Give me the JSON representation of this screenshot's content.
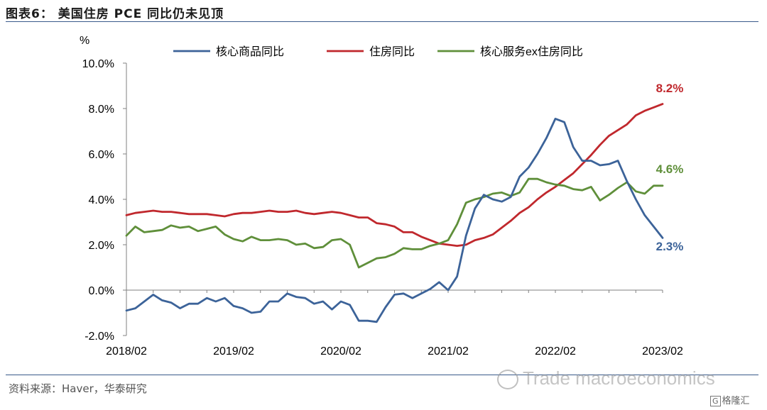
{
  "header": {
    "title": "图表6：  美国住房 PCE 同比仍未见顶"
  },
  "footer": {
    "source": "资料来源：Haver，华泰研究",
    "watermark": "Trade macroeconomics",
    "brand": "格隆汇",
    "brand_mark": "G"
  },
  "colors": {
    "core_goods": "#3c6399",
    "housing": "#c0282d",
    "core_services_ex_housing": "#5f8f3a",
    "axis": "#808080"
  },
  "chart_data": {
    "type": "line",
    "ylabel": "%",
    "ylim": [
      -2.0,
      10.0
    ],
    "yticks": [
      "-2.0%",
      "0.0%",
      "2.0%",
      "4.0%",
      "6.0%",
      "8.0%",
      "10.0%"
    ],
    "ytick_values": [
      -2,
      0,
      2,
      4,
      6,
      8,
      10
    ],
    "xticks": [
      "2018/02",
      "2019/02",
      "2020/02",
      "2021/02",
      "2022/02",
      "2023/02"
    ],
    "legend_position": "top",
    "grid": false,
    "x": [
      "2018/02",
      "2018/03",
      "2018/04",
      "2018/05",
      "2018/06",
      "2018/07",
      "2018/08",
      "2018/09",
      "2018/10",
      "2018/11",
      "2018/12",
      "2019/01",
      "2019/02",
      "2019/03",
      "2019/04",
      "2019/05",
      "2019/06",
      "2019/07",
      "2019/08",
      "2019/09",
      "2019/10",
      "2019/11",
      "2019/12",
      "2020/01",
      "2020/02",
      "2020/03",
      "2020/04",
      "2020/05",
      "2020/06",
      "2020/07",
      "2020/08",
      "2020/09",
      "2020/10",
      "2020/11",
      "2020/12",
      "2021/01",
      "2021/02",
      "2021/03",
      "2021/04",
      "2021/05",
      "2021/06",
      "2021/07",
      "2021/08",
      "2021/09",
      "2021/10",
      "2021/11",
      "2021/12",
      "2022/01",
      "2022/02",
      "2022/03",
      "2022/04",
      "2022/05",
      "2022/06",
      "2022/07",
      "2022/08",
      "2022/09",
      "2022/10",
      "2022/11",
      "2022/12",
      "2023/01",
      "2023/02"
    ],
    "series": [
      {
        "name": "核心商品同比",
        "color_key": "core_goods",
        "end_label": "2.3%",
        "values": [
          -0.9,
          -0.8,
          -0.5,
          -0.2,
          -0.45,
          -0.55,
          -0.8,
          -0.6,
          -0.6,
          -0.35,
          -0.5,
          -0.35,
          -0.7,
          -0.8,
          -1.0,
          -0.95,
          -0.5,
          -0.5,
          -0.15,
          -0.3,
          -0.35,
          -0.6,
          -0.5,
          -0.85,
          -0.5,
          -0.65,
          -1.35,
          -1.35,
          -1.4,
          -0.75,
          -0.2,
          -0.15,
          -0.35,
          -0.15,
          0.05,
          0.35,
          0.0,
          0.6,
          2.4,
          3.6,
          4.2,
          4.0,
          3.9,
          4.1,
          5.0,
          5.4,
          6.0,
          6.7,
          7.55,
          7.4,
          6.3,
          5.7,
          5.7,
          5.5,
          5.55,
          5.7,
          4.8,
          4.0,
          3.3,
          2.8,
          2.3
        ]
      },
      {
        "name": "住房同比",
        "color_key": "housing",
        "end_label": "8.2%",
        "values": [
          3.3,
          3.4,
          3.45,
          3.5,
          3.45,
          3.45,
          3.4,
          3.35,
          3.35,
          3.35,
          3.3,
          3.25,
          3.35,
          3.4,
          3.4,
          3.45,
          3.5,
          3.45,
          3.45,
          3.5,
          3.4,
          3.35,
          3.4,
          3.45,
          3.4,
          3.3,
          3.2,
          3.2,
          2.95,
          2.9,
          2.8,
          2.55,
          2.55,
          2.35,
          2.2,
          2.05,
          2.0,
          1.95,
          2.0,
          2.2,
          2.3,
          2.45,
          2.75,
          3.05,
          3.4,
          3.65,
          4.0,
          4.3,
          4.55,
          4.85,
          5.15,
          5.55,
          5.95,
          6.4,
          6.8,
          7.05,
          7.3,
          7.7,
          7.9,
          8.05,
          8.2
        ]
      },
      {
        "name": "核心服务ex住房同比",
        "color_key": "core_services_ex_housing",
        "end_label": "4.6%",
        "values": [
          2.4,
          2.8,
          2.55,
          2.6,
          2.65,
          2.85,
          2.75,
          2.8,
          2.6,
          2.7,
          2.8,
          2.45,
          2.25,
          2.15,
          2.35,
          2.2,
          2.2,
          2.25,
          2.2,
          2.0,
          2.05,
          1.85,
          1.9,
          2.2,
          2.25,
          2.0,
          1.0,
          1.2,
          1.4,
          1.45,
          1.6,
          1.85,
          1.8,
          1.8,
          1.95,
          2.05,
          2.2,
          2.9,
          3.85,
          4.0,
          4.1,
          4.25,
          4.3,
          4.15,
          4.3,
          4.9,
          4.9,
          4.75,
          4.65,
          4.6,
          4.45,
          4.4,
          4.55,
          3.95,
          4.2,
          4.5,
          4.75,
          4.35,
          4.25,
          4.6,
          4.6
        ]
      }
    ]
  }
}
